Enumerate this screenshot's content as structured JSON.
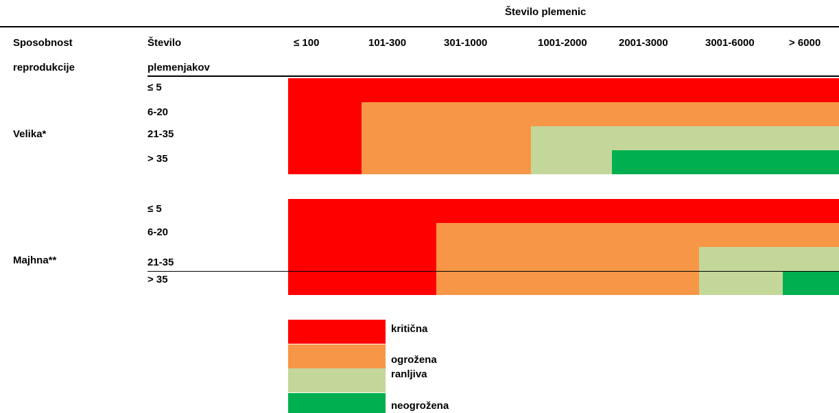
{
  "chart_data": {
    "type": "heatmap",
    "title": "",
    "top_header": "Število plemenic",
    "column_header_1": "Sposobnost",
    "column_header_1_line2": "reprodukcije",
    "column_header_2": "Število",
    "column_header_2_line2": "plemenjakov",
    "columns": [
      "≤ 100",
      "101-300",
      "301-1000",
      "1001-2000",
      "2001-3000",
      "3001-6000",
      "> 6000"
    ],
    "groups": [
      {
        "label": "Velika*",
        "rows": [
          "≤ 5",
          "6-20",
          "21-35",
          "> 35"
        ],
        "status": [
          [
            "critical",
            "critical",
            "critical",
            "critical",
            "critical",
            "critical",
            "critical"
          ],
          [
            "critical",
            "endangered",
            "endangered",
            "endangered",
            "endangered",
            "endangered",
            "endangered"
          ],
          [
            "critical",
            "endangered",
            "endangered",
            "vulnerable",
            "vulnerable",
            "vulnerable",
            "vulnerable"
          ],
          [
            "critical",
            "endangered",
            "endangered",
            "vulnerable",
            "not_endangered",
            "not_endangered",
            "not_endangered"
          ]
        ]
      },
      {
        "label": "Majhna**",
        "rows": [
          "≤ 5",
          "6-20",
          "21-35",
          "> 35"
        ],
        "status": [
          [
            "critical",
            "critical",
            "critical",
            "critical",
            "critical",
            "critical",
            "critical"
          ],
          [
            "critical",
            "critical",
            "endangered",
            "endangered",
            "endangered",
            "endangered",
            "endangered"
          ],
          [
            "critical",
            "critical",
            "endangered",
            "endangered",
            "endangered",
            "vulnerable",
            "vulnerable"
          ],
          [
            "critical",
            "critical",
            "endangered",
            "endangered",
            "endangered",
            "vulnerable",
            "not_endangered"
          ]
        ]
      }
    ],
    "legend": [
      {
        "key": "critical",
        "label": "kritična",
        "color": "#ff0000"
      },
      {
        "key": "endangered",
        "label": "ogrožena",
        "color": "#f79646"
      },
      {
        "key": "vulnerable",
        "label": "ranljiva",
        "color": "#c4d79b"
      },
      {
        "key": "not_endangered",
        "label": "neogrožena",
        "color": "#00b050"
      }
    ],
    "legend_placement": "bottom-center"
  }
}
